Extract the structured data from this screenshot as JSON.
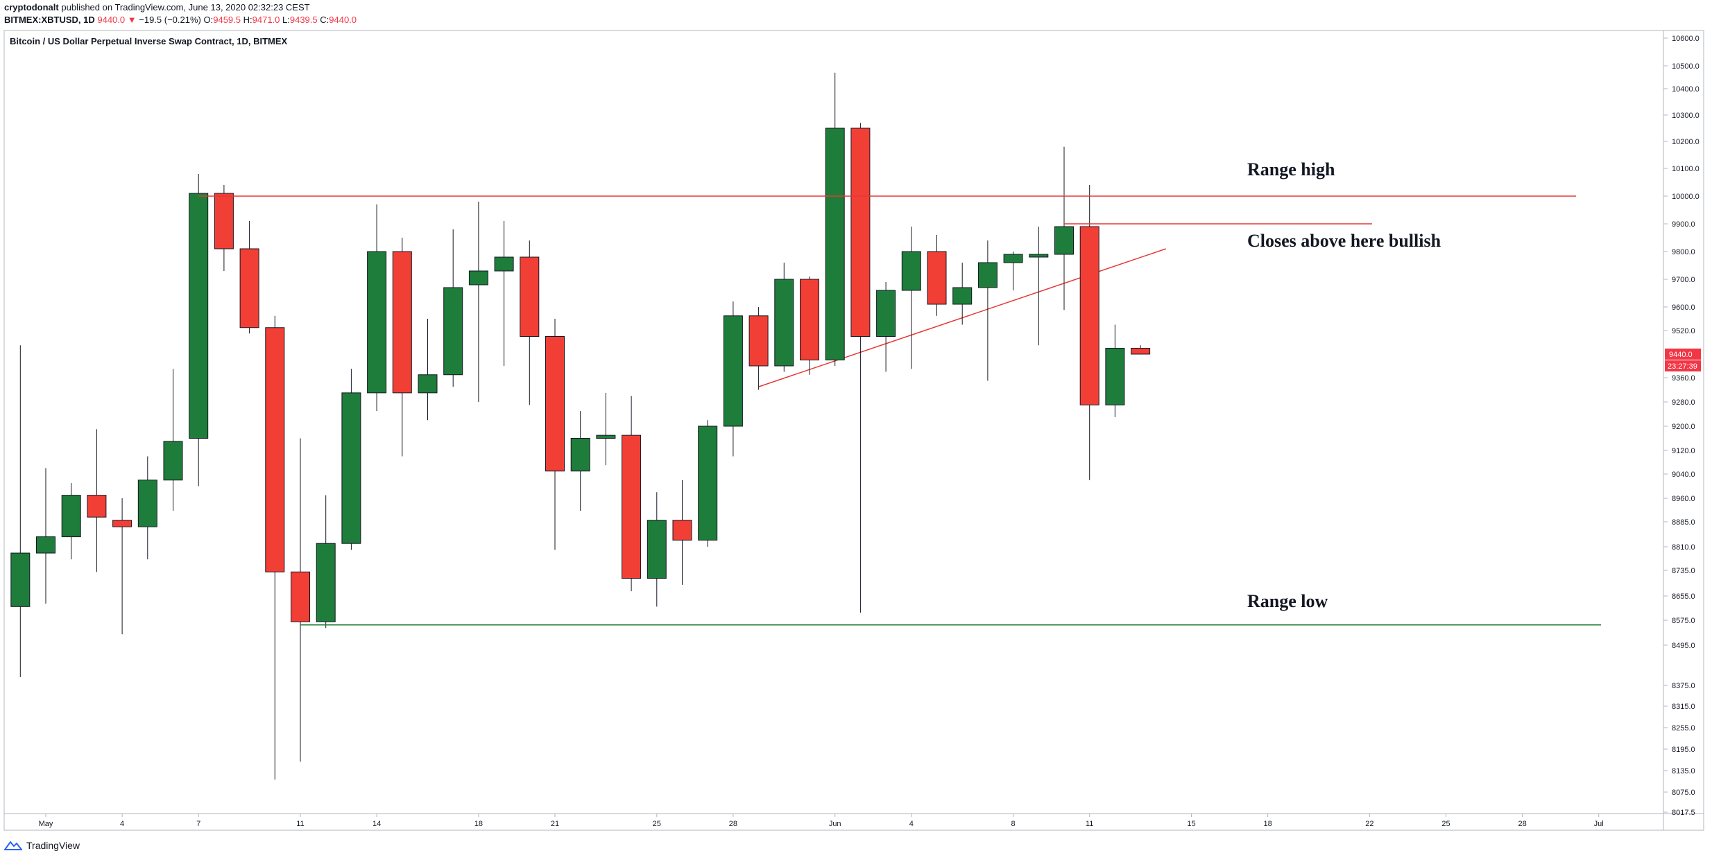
{
  "header": {
    "author": "cryptodonalt",
    "published": "published on TradingView.com, June 13, 2020 02:32:23 CEST",
    "symbol": "BITMEX:XBTUSD, 1D",
    "last": "9440.0",
    "change": "−19.5 (−0.21%)",
    "o_label": "O:",
    "o_val": "9459.5",
    "h_label": "H:",
    "h_val": "9471.0",
    "l_label": "L:",
    "l_val": "9439.5",
    "c_label": "C:",
    "c_val": "9440.0"
  },
  "footer": {
    "brand": "TradingView"
  },
  "colors": {
    "up": "#1e7d3a",
    "down": "#f23f36",
    "grid": "#e9ebf0",
    "axis": "#b2b5be",
    "resistance": "#e53935",
    "support": "#1b7a2f"
  },
  "chart_data": {
    "type": "candlestick",
    "title": "Bitcoin / US Dollar Perpetual Inverse Swap Contract, 1D, BITMEX",
    "x_ticks": [
      "May",
      "4",
      "7",
      "11",
      "14",
      "18",
      "21",
      "25",
      "28",
      "Jun",
      "4",
      "8",
      "11",
      "15",
      "18",
      "22",
      "25",
      "28",
      "Jul"
    ],
    "y_ticks": [
      "10600.0",
      "10500.0",
      "10400.0",
      "10300.0",
      "10200.0",
      "10100.0",
      "10000.0",
      "9900.0",
      "9800.0",
      "9700.0",
      "9600.0",
      "9520.0",
      "9360.0",
      "9280.0",
      "9200.0",
      "9120.0",
      "9040.0",
      "8960.0",
      "8885.0",
      "8810.0",
      "8735.0",
      "8655.0",
      "8575.0",
      "8495.0",
      "8375.0",
      "8315.0",
      "8255.0",
      "8195.0",
      "8135.0",
      "8075.0",
      "8017.5"
    ],
    "last_price_label": "9440.0",
    "countdown_label": "23:27:39",
    "candles": [
      {
        "date": "2020-04-30",
        "o": 8620,
        "h": 9470,
        "l": 8400,
        "c": 8790
      },
      {
        "date": "2020-05-01",
        "o": 8790,
        "h": 9060,
        "l": 8630,
        "c": 8840
      },
      {
        "date": "2020-05-02",
        "o": 8840,
        "h": 9010,
        "l": 8770,
        "c": 8970
      },
      {
        "date": "2020-05-03",
        "o": 8970,
        "h": 9190,
        "l": 8730,
        "c": 8900
      },
      {
        "date": "2020-05-04",
        "o": 8890,
        "h": 8960,
        "l": 8530,
        "c": 8870
      },
      {
        "date": "2020-05-05",
        "o": 8870,
        "h": 9100,
        "l": 8770,
        "c": 9020
      },
      {
        "date": "2020-05-06",
        "o": 9020,
        "h": 9390,
        "l": 8920,
        "c": 9150
      },
      {
        "date": "2020-05-07",
        "o": 9160,
        "h": 10080,
        "l": 9000,
        "c": 10010
      },
      {
        "date": "2020-05-08",
        "o": 10010,
        "h": 10040,
        "l": 9730,
        "c": 9810
      },
      {
        "date": "2020-05-09",
        "o": 9810,
        "h": 9910,
        "l": 9510,
        "c": 9530
      },
      {
        "date": "2020-05-10",
        "o": 9530,
        "h": 9570,
        "l": 8110,
        "c": 8730
      },
      {
        "date": "2020-05-11",
        "o": 8730,
        "h": 9160,
        "l": 8160,
        "c": 8570
      },
      {
        "date": "2020-05-12",
        "o": 8570,
        "h": 8970,
        "l": 8550,
        "c": 8820
      },
      {
        "date": "2020-05-13",
        "o": 8820,
        "h": 9390,
        "l": 8800,
        "c": 9310
      },
      {
        "date": "2020-05-14",
        "o": 9310,
        "h": 9970,
        "l": 9250,
        "c": 9800
      },
      {
        "date": "2020-05-15",
        "o": 9800,
        "h": 9850,
        "l": 9100,
        "c": 9310
      },
      {
        "date": "2020-05-16",
        "o": 9310,
        "h": 9560,
        "l": 9220,
        "c": 9370
      },
      {
        "date": "2020-05-17",
        "o": 9370,
        "h": 9880,
        "l": 9330,
        "c": 9670
      },
      {
        "date": "2020-05-18",
        "o": 9680,
        "h": 9980,
        "l": 9280,
        "c": 9730
      },
      {
        "date": "2020-05-19",
        "o": 9730,
        "h": 9910,
        "l": 9400,
        "c": 9780
      },
      {
        "date": "2020-05-20",
        "o": 9780,
        "h": 9840,
        "l": 9270,
        "c": 9500
      },
      {
        "date": "2020-05-21",
        "o": 9500,
        "h": 9560,
        "l": 8800,
        "c": 9050
      },
      {
        "date": "2020-05-22",
        "o": 9050,
        "h": 9250,
        "l": 8920,
        "c": 9160
      },
      {
        "date": "2020-05-23",
        "o": 9160,
        "h": 9310,
        "l": 9070,
        "c": 9170
      },
      {
        "date": "2020-05-24",
        "o": 9170,
        "h": 9300,
        "l": 8670,
        "c": 8710
      },
      {
        "date": "2020-05-25",
        "o": 8710,
        "h": 8980,
        "l": 8620,
        "c": 8890
      },
      {
        "date": "2020-05-26",
        "o": 8890,
        "h": 9020,
        "l": 8690,
        "c": 8830
      },
      {
        "date": "2020-05-27",
        "o": 8830,
        "h": 9220,
        "l": 8810,
        "c": 9200
      },
      {
        "date": "2020-05-28",
        "o": 9200,
        "h": 9620,
        "l": 9100,
        "c": 9570
      },
      {
        "date": "2020-05-29",
        "o": 9570,
        "h": 9600,
        "l": 9320,
        "c": 9400
      },
      {
        "date": "2020-05-30",
        "o": 9400,
        "h": 9760,
        "l": 9380,
        "c": 9700
      },
      {
        "date": "2020-05-31",
        "o": 9700,
        "h": 9710,
        "l": 9370,
        "c": 9420
      },
      {
        "date": "2020-06-01",
        "o": 9420,
        "h": 10470,
        "l": 9400,
        "c": 10250
      },
      {
        "date": "2020-06-02",
        "o": 10250,
        "h": 10270,
        "l": 8600,
        "c": 9500
      },
      {
        "date": "2020-06-03",
        "o": 9500,
        "h": 9690,
        "l": 9380,
        "c": 9660
      },
      {
        "date": "2020-06-04",
        "o": 9660,
        "h": 9890,
        "l": 9390,
        "c": 9800
      },
      {
        "date": "2020-06-05",
        "o": 9800,
        "h": 9860,
        "l": 9570,
        "c": 9610
      },
      {
        "date": "2020-06-06",
        "o": 9610,
        "h": 9760,
        "l": 9540,
        "c": 9670
      },
      {
        "date": "2020-06-07",
        "o": 9670,
        "h": 9840,
        "l": 9350,
        "c": 9760
      },
      {
        "date": "2020-06-08",
        "o": 9760,
        "h": 9800,
        "l": 9660,
        "c": 9790
      },
      {
        "date": "2020-06-09",
        "o": 9780,
        "h": 9890,
        "l": 9470,
        "c": 9790
      },
      {
        "date": "2020-06-10",
        "o": 9790,
        "h": 10180,
        "l": 9590,
        "c": 9890
      },
      {
        "date": "2020-06-11",
        "o": 9890,
        "h": 10040,
        "l": 9020,
        "c": 9270
      },
      {
        "date": "2020-06-12",
        "o": 9270,
        "h": 9540,
        "l": 9230,
        "c": 9460
      },
      {
        "date": "2020-06-13",
        "o": 9460,
        "h": 9470,
        "l": 9440,
        "c": 9440
      }
    ],
    "annotations": [
      {
        "text": "Range high",
        "price": 10000
      },
      {
        "text": "Closes above here bullish",
        "price": 9900
      },
      {
        "text": "Range low",
        "price": 8560
      }
    ],
    "trendline": {
      "from_date": "2020-05-29",
      "from_price": 9330,
      "to_date": "2020-06-14",
      "to_price": 9810
    }
  }
}
